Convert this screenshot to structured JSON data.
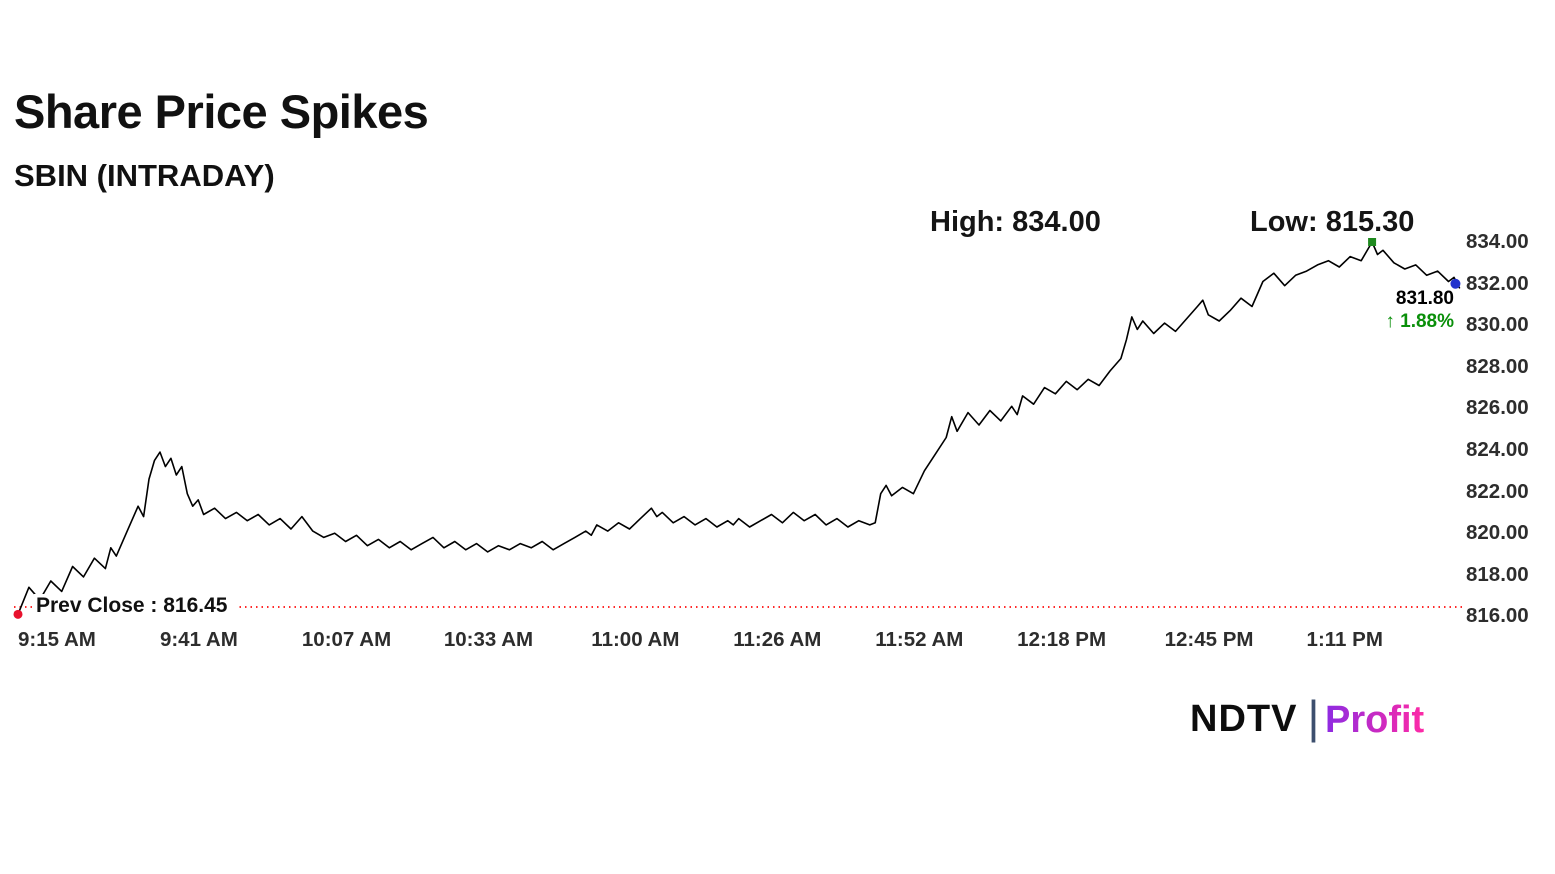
{
  "header": {
    "title": "Share Price Spikes",
    "subtitle": "SBIN (INTRADAY)"
  },
  "annotations": {
    "high_label": "High: 834.00",
    "low_label": "Low: 815.30",
    "last_price": "831.80",
    "change": "↑ 1.88%",
    "prev_close_label": "Prev Close : 816.45"
  },
  "logo": {
    "ndtv": "NDTV",
    "separator": "|",
    "profit": "Profit"
  },
  "chart_data": {
    "type": "line",
    "title": "Share Price Spikes",
    "symbol": "SBIN",
    "session": "INTRADAY",
    "high": 834.0,
    "low": 815.3,
    "prev_close": 816.45,
    "last": 831.8,
    "change_pct": 1.88,
    "ylim": [
      816.0,
      834.0
    ],
    "grid": false,
    "legend": "none",
    "line_color": "#000000",
    "prev_close_line_color": "#ff2a2a",
    "marker_colors": {
      "start": "#e8112d",
      "high": "#1f8a1f",
      "last": "#2233cc"
    },
    "y_ticks": [
      834,
      832,
      830,
      828,
      826,
      824,
      822,
      820,
      818,
      816
    ],
    "x_ticks": [
      {
        "label": "9:15 AM",
        "minute": 0
      },
      {
        "label": "9:41 AM",
        "minute": 26
      },
      {
        "label": "10:07 AM",
        "minute": 52
      },
      {
        "label": "10:33 AM",
        "minute": 78
      },
      {
        "label": "11:00 AM",
        "minute": 105
      },
      {
        "label": "11:26 AM",
        "minute": 131
      },
      {
        "label": "11:52 AM",
        "minute": 157
      },
      {
        "label": "12:18 PM",
        "minute": 183
      },
      {
        "label": "12:45 PM",
        "minute": 210
      },
      {
        "label": "1:11 PM",
        "minute": 236
      }
    ],
    "series": [
      {
        "name": "SBIN intraday price (minutes after 9:15 AM, price INR)",
        "points": [
          [
            0,
            816.1
          ],
          [
            2,
            817.4
          ],
          [
            4,
            816.8
          ],
          [
            6,
            817.7
          ],
          [
            8,
            817.2
          ],
          [
            10,
            818.4
          ],
          [
            12,
            817.9
          ],
          [
            14,
            818.8
          ],
          [
            16,
            818.3
          ],
          [
            17,
            819.3
          ],
          [
            18,
            818.9
          ],
          [
            20,
            820.1
          ],
          [
            22,
            821.3
          ],
          [
            23,
            820.8
          ],
          [
            24,
            822.6
          ],
          [
            25,
            823.5
          ],
          [
            26,
            823.9
          ],
          [
            27,
            823.2
          ],
          [
            28,
            823.6
          ],
          [
            29,
            822.8
          ],
          [
            30,
            823.2
          ],
          [
            31,
            821.9
          ],
          [
            32,
            821.3
          ],
          [
            33,
            821.6
          ],
          [
            34,
            820.9
          ],
          [
            36,
            821.2
          ],
          [
            38,
            820.7
          ],
          [
            40,
            821.0
          ],
          [
            42,
            820.6
          ],
          [
            44,
            820.9
          ],
          [
            46,
            820.4
          ],
          [
            48,
            820.7
          ],
          [
            50,
            820.2
          ],
          [
            52,
            820.8
          ],
          [
            54,
            820.1
          ],
          [
            56,
            819.8
          ],
          [
            58,
            820.0
          ],
          [
            60,
            819.6
          ],
          [
            62,
            819.9
          ],
          [
            64,
            819.4
          ],
          [
            66,
            819.7
          ],
          [
            68,
            819.3
          ],
          [
            70,
            819.6
          ],
          [
            72,
            819.2
          ],
          [
            74,
            819.5
          ],
          [
            76,
            819.8
          ],
          [
            78,
            819.3
          ],
          [
            80,
            819.6
          ],
          [
            82,
            819.2
          ],
          [
            84,
            819.5
          ],
          [
            86,
            819.1
          ],
          [
            88,
            819.4
          ],
          [
            90,
            819.2
          ],
          [
            92,
            819.5
          ],
          [
            94,
            819.3
          ],
          [
            96,
            819.6
          ],
          [
            98,
            819.2
          ],
          [
            100,
            819.5
          ],
          [
            102,
            819.8
          ],
          [
            104,
            820.1
          ],
          [
            105,
            819.9
          ],
          [
            106,
            820.4
          ],
          [
            108,
            820.1
          ],
          [
            110,
            820.5
          ],
          [
            112,
            820.2
          ],
          [
            114,
            820.7
          ],
          [
            116,
            821.2
          ],
          [
            117,
            820.8
          ],
          [
            118,
            821.0
          ],
          [
            120,
            820.5
          ],
          [
            122,
            820.8
          ],
          [
            124,
            820.4
          ],
          [
            126,
            820.7
          ],
          [
            128,
            820.3
          ],
          [
            130,
            820.6
          ],
          [
            131,
            820.4
          ],
          [
            132,
            820.7
          ],
          [
            134,
            820.3
          ],
          [
            136,
            820.6
          ],
          [
            138,
            820.9
          ],
          [
            140,
            820.5
          ],
          [
            142,
            821.0
          ],
          [
            144,
            820.6
          ],
          [
            146,
            820.9
          ],
          [
            148,
            820.4
          ],
          [
            150,
            820.7
          ],
          [
            152,
            820.3
          ],
          [
            154,
            820.6
          ],
          [
            156,
            820.4
          ],
          [
            157,
            820.5
          ],
          [
            158,
            821.9
          ],
          [
            159,
            822.3
          ],
          [
            160,
            821.8
          ],
          [
            162,
            822.2
          ],
          [
            164,
            821.9
          ],
          [
            166,
            823.0
          ],
          [
            168,
            823.8
          ],
          [
            170,
            824.6
          ],
          [
            171,
            825.6
          ],
          [
            172,
            824.9
          ],
          [
            174,
            825.8
          ],
          [
            176,
            825.2
          ],
          [
            178,
            825.9
          ],
          [
            180,
            825.4
          ],
          [
            182,
            826.1
          ],
          [
            183,
            825.7
          ],
          [
            184,
            826.6
          ],
          [
            186,
            826.2
          ],
          [
            188,
            827.0
          ],
          [
            190,
            826.7
          ],
          [
            192,
            827.3
          ],
          [
            194,
            826.9
          ],
          [
            196,
            827.4
          ],
          [
            198,
            827.1
          ],
          [
            200,
            827.8
          ],
          [
            202,
            828.4
          ],
          [
            203,
            829.3
          ],
          [
            204,
            830.4
          ],
          [
            205,
            829.8
          ],
          [
            206,
            830.2
          ],
          [
            208,
            829.6
          ],
          [
            210,
            830.1
          ],
          [
            212,
            829.7
          ],
          [
            214,
            830.3
          ],
          [
            216,
            830.9
          ],
          [
            217,
            831.2
          ],
          [
            218,
            830.5
          ],
          [
            220,
            830.2
          ],
          [
            222,
            830.7
          ],
          [
            224,
            831.3
          ],
          [
            226,
            830.9
          ],
          [
            228,
            832.1
          ],
          [
            230,
            832.5
          ],
          [
            232,
            831.9
          ],
          [
            234,
            832.4
          ],
          [
            236,
            832.6
          ],
          [
            238,
            832.9
          ],
          [
            240,
            833.1
          ],
          [
            242,
            832.8
          ],
          [
            244,
            833.3
          ],
          [
            246,
            833.1
          ],
          [
            248,
            834.0
          ],
          [
            249,
            833.4
          ],
          [
            250,
            833.6
          ],
          [
            252,
            833.0
          ],
          [
            254,
            832.7
          ],
          [
            256,
            832.9
          ],
          [
            258,
            832.4
          ],
          [
            260,
            832.6
          ],
          [
            262,
            832.1
          ],
          [
            263,
            832.3
          ],
          [
            264,
            831.8
          ]
        ]
      }
    ]
  }
}
